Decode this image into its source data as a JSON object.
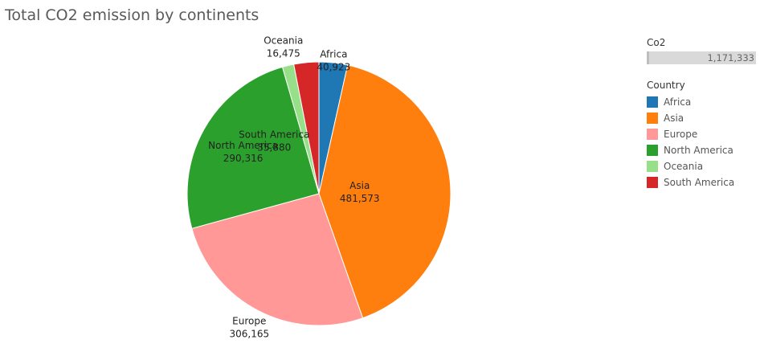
{
  "chart_data": {
    "type": "pie",
    "title": "Total CO2 emission by continents",
    "slices": [
      {
        "name": "Africa",
        "value": 40923,
        "label": "40,923",
        "color": "#1f77b4"
      },
      {
        "name": "Asia",
        "value": 481573,
        "label": "481,573",
        "color": "#ff7f0e"
      },
      {
        "name": "Europe",
        "value": 306165,
        "label": "306,165",
        "color": "#ff9896"
      },
      {
        "name": "North America",
        "value": 290316,
        "label": "290,316",
        "color": "#2ca02c"
      },
      {
        "name": "Oceania",
        "value": 16475,
        "label": "16,475",
        "color": "#98df8a"
      },
      {
        "name": "South America",
        "value": 35880,
        "label": "35,880",
        "color": "#d62728"
      }
    ],
    "legend_placement": "right"
  },
  "legend": {
    "size_title": "Co2",
    "size_value": "1,171,333",
    "color_title": "Country"
  }
}
